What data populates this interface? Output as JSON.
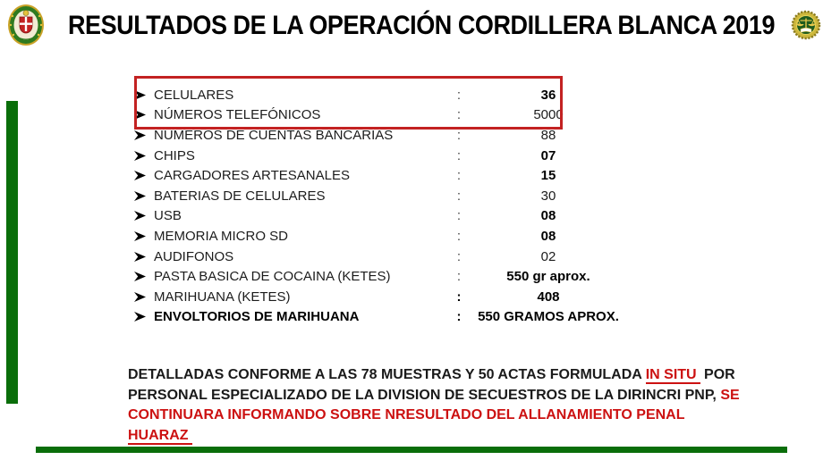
{
  "slide": {
    "title": "RESULTADOS DE LA OPERACIÓN CORDILLERA BLANCA 2019"
  },
  "logos": {
    "left_icon": "pnp-coat-of-arms-icon",
    "right_icon": "dirincri-scales-seal-icon"
  },
  "colors": {
    "accent_green": "#0a6e0a",
    "highlight_red": "#c32222",
    "text_red": "#cc1111"
  },
  "results": {
    "separator": ":",
    "bullet_icon": "right-arrowhead-icon",
    "rows": [
      {
        "label": "CELULARES",
        "value": "36",
        "label_bold": false,
        "sep_bold": false,
        "value_bold": true,
        "highlighted": true
      },
      {
        "label": "NÚMEROS TELEFÓNICOS",
        "value": "5000",
        "label_bold": false,
        "sep_bold": false,
        "value_bold": false,
        "highlighted": true
      },
      {
        "label": "NÚMEROS DE CUENTAS BANCARIAS",
        "value": "88",
        "label_bold": false,
        "sep_bold": false,
        "value_bold": false,
        "highlighted": false
      },
      {
        "label": "CHIPS",
        "value": "07",
        "label_bold": false,
        "sep_bold": false,
        "value_bold": true,
        "highlighted": false
      },
      {
        "label": "CARGADORES ARTESANALES",
        "value": "15",
        "label_bold": false,
        "sep_bold": false,
        "value_bold": true,
        "highlighted": false
      },
      {
        "label": "BATERIAS DE CELULARES",
        "value": "30",
        "label_bold": false,
        "sep_bold": false,
        "value_bold": false,
        "highlighted": false
      },
      {
        "label": "USB",
        "value": "08",
        "label_bold": false,
        "sep_bold": false,
        "value_bold": true,
        "highlighted": false
      },
      {
        "label": "MEMORIA MICRO SD",
        "value": "08",
        "label_bold": false,
        "sep_bold": false,
        "value_bold": true,
        "highlighted": false
      },
      {
        "label": "AUDIFONOS",
        "value": "02",
        "label_bold": false,
        "sep_bold": false,
        "value_bold": false,
        "highlighted": false
      },
      {
        "label": "PASTA BASICA DE COCAINA (KETES)",
        "value": "550 gr aprox.",
        "label_bold": false,
        "sep_bold": false,
        "value_bold": true,
        "highlighted": false
      },
      {
        "label": "MARIHUANA (KETES)",
        "value": "408",
        "label_bold": false,
        "sep_bold": true,
        "value_bold": true,
        "highlighted": false
      },
      {
        "label": "ENVOLTORIOS DE MARIHUANA",
        "value": "550 GRAMOS APROX.",
        "label_bold": true,
        "sep_bold": true,
        "value_bold": true,
        "highlighted": false
      }
    ]
  },
  "footer": {
    "lines": [
      [
        {
          "text": "DETALLADAS CONFORME A LAS 78 MUESTRAS Y 50 ACTAS FORMULADA  ",
          "style": "black"
        },
        {
          "text": "IN SITU",
          "style": "red-underline"
        },
        {
          "text": " POR",
          "style": "black"
        }
      ],
      [
        {
          "text": "PERSONAL ESPECIALIZADO DE LA DIVISION DE SECUESTROS DE LA DIRINCRI PNP, ",
          "style": "black"
        },
        {
          "text": "SE",
          "style": "red"
        }
      ],
      [
        {
          "text": "CONTINUARA INFORMANDO SOBRE NRESULTADO DEL ALLANAMIENTO PENAL",
          "style": "red"
        }
      ],
      [
        {
          "text": "HUARAZ",
          "style": "red-underline"
        }
      ]
    ]
  }
}
